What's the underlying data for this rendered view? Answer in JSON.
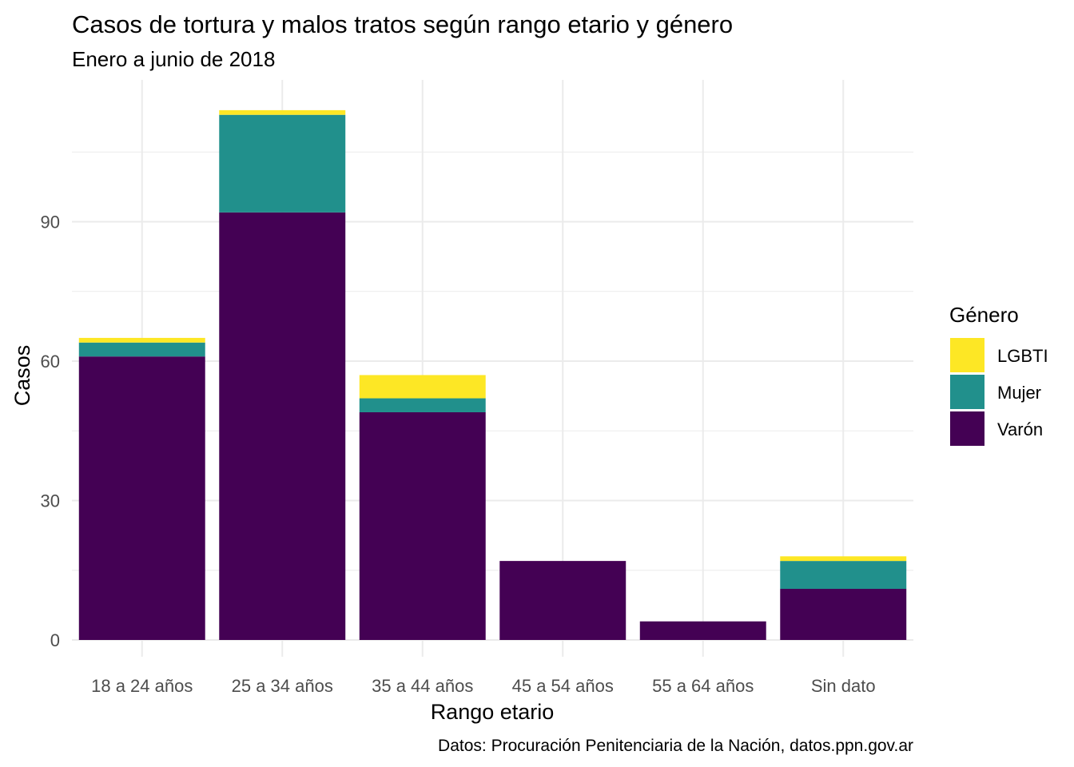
{
  "chart_data": {
    "type": "bar",
    "stacked": true,
    "title": "Casos de tortura y malos tratos según rango etario y género",
    "subtitle": "Enero a junio de 2018",
    "xlabel": "Rango etario",
    "ylabel": "Casos",
    "caption": "Datos: Procuración Penitenciaria de la Nación, datos.ppn.gov.ar",
    "categories": [
      "18 a 24 años",
      "25 a 34 años",
      "35 a 44 años",
      "45 a 54 años",
      "55 a 64 años",
      "Sin dato"
    ],
    "y_ticks": [
      0,
      30,
      60,
      90
    ],
    "ylim": [
      0,
      115
    ],
    "grid": true,
    "legend": {
      "title": "Género",
      "position": "right",
      "items": [
        "LGBTI",
        "Mujer",
        "Varón"
      ]
    },
    "series": [
      {
        "name": "Varón",
        "color": "#440154",
        "values": [
          61,
          92,
          49,
          17,
          4,
          11
        ]
      },
      {
        "name": "Mujer",
        "color": "#21908C",
        "values": [
          3,
          21,
          3,
          0,
          0,
          6
        ]
      },
      {
        "name": "LGBTI",
        "color": "#FDE725",
        "values": [
          1,
          1,
          5,
          0,
          0,
          1
        ]
      }
    ]
  }
}
